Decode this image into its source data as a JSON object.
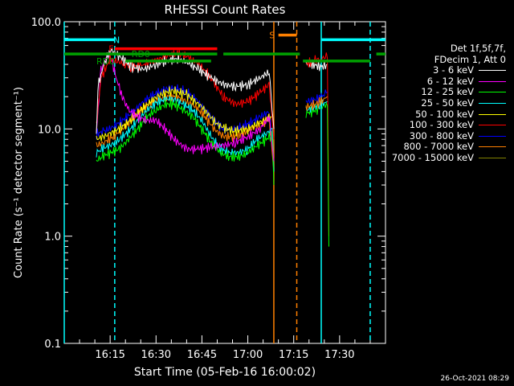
{
  "chart_data": {
    "type": "line",
    "title": "RHESSI Count Rates",
    "xlabel": "Start Time (05-Feb-16 16:00:02)",
    "ylabel": "Count Rate (s⁻¹ detector segment⁻¹)",
    "y_scale": "log",
    "ylim": [
      0.1,
      100.0
    ],
    "y_ticks": [
      "100.0",
      "10.0",
      "1.0",
      "0.1"
    ],
    "x_ticks": [
      "16:15",
      "16:30",
      "16:45",
      "17:00",
      "17:15",
      "17:30"
    ],
    "xlim_min": [
      0,
      105
    ],
    "x_tick_min": [
      15,
      30,
      45,
      60,
      75,
      90
    ],
    "legend_header": [
      "Det 1f,5f,7f,",
      "FDecim 1, Att 0"
    ],
    "series": [
      {
        "name": "3 - 6 keV",
        "color": "#ffffff",
        "points": [
          [
            10.5,
            9
          ],
          [
            11,
            25
          ],
          [
            13,
            40
          ],
          [
            15,
            55
          ],
          [
            18,
            48
          ],
          [
            22,
            38
          ],
          [
            26,
            36
          ],
          [
            30,
            40
          ],
          [
            34,
            44
          ],
          [
            37,
            45
          ],
          [
            40,
            42
          ],
          [
            44,
            36
          ],
          [
            48,
            30
          ],
          [
            52,
            26
          ],
          [
            56,
            25
          ],
          [
            60,
            26
          ],
          [
            64,
            30
          ],
          [
            67,
            34
          ],
          [
            68.5,
            10
          ]
        ]
      },
      {
        "name": "6 - 12 keV",
        "color": "#ff00ff",
        "points": [
          [
            10.5,
            9
          ],
          [
            12,
            35
          ],
          [
            14,
            50
          ],
          [
            15.5,
            45
          ],
          [
            17,
            30
          ],
          [
            19,
            20
          ],
          [
            21,
            15
          ],
          [
            24,
            13
          ],
          [
            27,
            12
          ],
          [
            30,
            12
          ],
          [
            33,
            10
          ],
          [
            36,
            8
          ],
          [
            40,
            6.5
          ],
          [
            44,
            6.5
          ],
          [
            48,
            6.8
          ],
          [
            52,
            7
          ],
          [
            56,
            7.5
          ],
          [
            60,
            8.5
          ],
          [
            64,
            10
          ],
          [
            67,
            13
          ],
          [
            68.5,
            5
          ]
        ]
      },
      {
        "name": "12 - 25 keV",
        "color": "#00ff00",
        "points": [
          [
            10.5,
            5
          ],
          [
            12,
            5.5
          ],
          [
            15,
            6
          ],
          [
            18,
            6.5
          ],
          [
            21,
            8
          ],
          [
            24,
            10
          ],
          [
            27,
            13
          ],
          [
            30,
            15
          ],
          [
            33,
            17
          ],
          [
            36,
            17
          ],
          [
            39,
            15
          ],
          [
            42,
            13
          ],
          [
            45,
            10
          ],
          [
            48,
            7.5
          ],
          [
            51,
            6
          ],
          [
            54,
            5.5
          ],
          [
            57,
            5.5
          ],
          [
            60,
            6
          ],
          [
            63,
            7
          ],
          [
            66,
            8
          ],
          [
            68,
            9
          ],
          [
            68.5,
            3
          ]
        ]
      },
      {
        "name": "25 - 50 keV",
        "color": "#00ffff",
        "points": [
          [
            10.5,
            6
          ],
          [
            12,
            6.5
          ],
          [
            15,
            7
          ],
          [
            18,
            8
          ],
          [
            21,
            9.5
          ],
          [
            24,
            12
          ],
          [
            27,
            15
          ],
          [
            30,
            17.5
          ],
          [
            33,
            19
          ],
          [
            36,
            19
          ],
          [
            39,
            17
          ],
          [
            42,
            15
          ],
          [
            45,
            12
          ],
          [
            48,
            8.5
          ],
          [
            51,
            6.5
          ],
          [
            54,
            6
          ],
          [
            57,
            6
          ],
          [
            60,
            6.5
          ],
          [
            63,
            8
          ],
          [
            66,
            9
          ],
          [
            68,
            10
          ],
          [
            68.5,
            4
          ]
        ]
      },
      {
        "name": "50 - 100 keV",
        "color": "#ffff00",
        "points": [
          [
            10.5,
            8
          ],
          [
            15,
            9
          ],
          [
            20,
            11
          ],
          [
            25,
            15
          ],
          [
            30,
            20
          ],
          [
            35,
            23
          ],
          [
            40,
            21
          ],
          [
            45,
            16
          ],
          [
            50,
            11
          ],
          [
            55,
            9.5
          ],
          [
            60,
            10
          ],
          [
            65,
            12
          ],
          [
            68,
            13
          ]
        ]
      },
      {
        "name": "100 - 300 keV",
        "color": "#ff0000",
        "points": [
          [
            10.5,
            11
          ],
          [
            12,
            30
          ],
          [
            15,
            45
          ],
          [
            18,
            42
          ],
          [
            22,
            38
          ],
          [
            26,
            40
          ],
          [
            30,
            44
          ],
          [
            34,
            48
          ],
          [
            37,
            50
          ],
          [
            40,
            48
          ],
          [
            44,
            40
          ],
          [
            48,
            30
          ],
          [
            52,
            20
          ],
          [
            56,
            17
          ],
          [
            60,
            18
          ],
          [
            64,
            22
          ],
          [
            67,
            26
          ],
          [
            68.5,
            8
          ]
        ]
      },
      {
        "name": "300 - 800 keV",
        "color": "#0000ff",
        "points": [
          [
            10.5,
            9
          ],
          [
            13,
            9.5
          ],
          [
            16,
            10.5
          ],
          [
            19,
            12
          ],
          [
            22,
            14
          ],
          [
            25,
            17
          ],
          [
            28,
            20
          ],
          [
            31,
            22
          ],
          [
            34,
            24
          ],
          [
            37,
            24
          ],
          [
            40,
            22
          ],
          [
            43,
            19
          ],
          [
            46,
            15
          ],
          [
            49,
            12
          ],
          [
            52,
            10
          ],
          [
            55,
            10
          ],
          [
            58,
            10.5
          ],
          [
            61,
            11.5
          ],
          [
            64,
            13
          ],
          [
            67,
            14.5
          ],
          [
            68.5,
            5
          ]
        ]
      },
      {
        "name": "800 - 7000 keV",
        "color": "#ff8000",
        "points": [
          [
            10.5,
            7
          ],
          [
            13,
            7.5
          ],
          [
            16,
            8.5
          ],
          [
            19,
            10
          ],
          [
            22,
            12
          ],
          [
            25,
            15
          ],
          [
            28,
            17
          ],
          [
            31,
            19
          ],
          [
            34,
            20
          ],
          [
            37,
            20
          ],
          [
            40,
            18
          ],
          [
            43,
            16
          ],
          [
            46,
            13
          ],
          [
            49,
            10
          ],
          [
            52,
            8.5
          ],
          [
            55,
            8.5
          ],
          [
            58,
            9
          ],
          [
            61,
            10
          ],
          [
            64,
            11
          ],
          [
            67,
            12.5
          ],
          [
            68.5,
            4
          ]
        ]
      },
      {
        "name": "7000 - 15000 keV",
        "color": "#808000",
        "points": []
      }
    ],
    "series_after_gap": [
      {
        "color": "#ffffff",
        "points": [
          [
            79,
            42
          ],
          [
            81,
            40
          ],
          [
            84,
            38
          ],
          [
            86,
            40
          ]
        ]
      },
      {
        "color": "#ff0000",
        "points": [
          [
            79,
            40
          ],
          [
            82,
            44
          ],
          [
            84,
            45
          ],
          [
            86,
            48
          ],
          [
            86.5,
            1
          ]
        ]
      },
      {
        "color": "#0000ff",
        "points": [
          [
            79,
            18
          ],
          [
            82,
            19
          ],
          [
            84,
            20
          ],
          [
            86,
            22
          ]
        ]
      },
      {
        "color": "#00ff00",
        "points": [
          [
            79,
            14
          ],
          [
            82,
            15
          ],
          [
            84,
            16
          ],
          [
            86,
            17
          ],
          [
            86.5,
            0.8
          ]
        ]
      },
      {
        "color": "#00ffff",
        "points": [
          [
            79,
            15
          ],
          [
            82,
            16
          ],
          [
            84,
            17
          ],
          [
            86,
            18
          ]
        ]
      },
      {
        "color": "#ff8000",
        "points": [
          [
            79,
            16
          ],
          [
            82,
            17
          ],
          [
            84,
            18
          ],
          [
            86,
            20
          ]
        ]
      }
    ],
    "annotations": [
      {
        "label": "N",
        "color": "#00ffff",
        "x_min": 16,
        "y": 68
      },
      {
        "label": "F",
        "color": "#ff0000",
        "x_min": 14.5,
        "y": 56
      },
      {
        "label": "RD0",
        "color": "#00a000",
        "x_min": 22,
        "y": 50
      },
      {
        "label": "RD0",
        "color": "#00a000",
        "x_min": 10.5,
        "y": 43
      },
      {
        "label": "S",
        "color": "#ff8000",
        "x_min": 67,
        "y": 75
      }
    ],
    "bars": [
      {
        "color": "#00ffff",
        "x0": 0,
        "x1": 16.5,
        "y": 68
      },
      {
        "color": "#00ffff",
        "x0": 84,
        "x1": 105,
        "y": 68
      },
      {
        "color": "#ff0000",
        "x0": 16.5,
        "x1": 50,
        "y": 56
      },
      {
        "color": "#00a000",
        "x0": 0,
        "x1": 50,
        "y": 50
      },
      {
        "color": "#00a000",
        "x0": 52,
        "x1": 77,
        "y": 50
      },
      {
        "color": "#00a000",
        "x0": 102,
        "x1": 105,
        "y": 50
      },
      {
        "color": "#00a000",
        "x0": 20,
        "x1": 48,
        "y": 43
      },
      {
        "color": "#00a000",
        "x0": 78,
        "x1": 100,
        "y": 43
      },
      {
        "color": "#ff8000",
        "x0": 70,
        "x1": 76,
        "y": 75
      }
    ],
    "vlines": [
      {
        "x": 0,
        "color": "#00ffff",
        "dashed": false
      },
      {
        "x": 16.5,
        "color": "#00ffff",
        "dashed": true
      },
      {
        "x": 68.5,
        "color": "#ff8000",
        "dashed": false
      },
      {
        "x": 76,
        "color": "#ff8000",
        "dashed": true
      },
      {
        "x": 84,
        "color": "#00ffff",
        "dashed": false
      },
      {
        "x": 100,
        "color": "#00ffff",
        "dashed": true
      }
    ]
  },
  "footer_stamp": "26-Oct-2021 08:29"
}
